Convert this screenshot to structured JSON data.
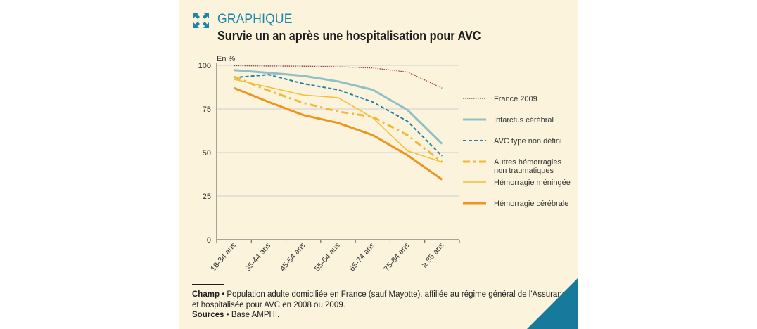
{
  "header": {
    "label": "GRAPHIQUE",
    "title": "Survie un an après une hospitalisation pour AVC",
    "icon": "expand-arrows-icon",
    "accent_color": "#1a86a8"
  },
  "chart_data": {
    "type": "line",
    "title": "Survie un an après une hospitalisation pour AVC",
    "ylabel": "En %",
    "xlabel": "",
    "ylim": [
      0,
      100
    ],
    "yticks": [
      0,
      25,
      50,
      75,
      100
    ],
    "grid": true,
    "legend_position": "right",
    "categories": [
      "18-34 ans",
      "35-44 ans",
      "45-54 ans",
      "55-64 ans",
      "65-74 ans",
      "75-84 ans",
      "≥ 85 ans"
    ],
    "series": [
      {
        "name": "France 2009",
        "values": [
          99.8,
          99.6,
          99.5,
          99.2,
          98.5,
          96.2,
          87.0
        ],
        "color": "#9b3a3a",
        "style": "dotted"
      },
      {
        "name": "Infarctus cérébral",
        "values": [
          97.3,
          95.7,
          94.0,
          90.8,
          86.0,
          74.5,
          55.0
        ],
        "color": "#8fc0c8",
        "style": "solid-thick"
      },
      {
        "name": "AVC type non défini",
        "values": [
          93.0,
          94.7,
          89.5,
          86.0,
          79.0,
          68.0,
          48.0
        ],
        "color": "#1f7fa4",
        "style": "dashed"
      },
      {
        "name": "Autres hémorragies non traumatiques",
        "values": [
          93.5,
          85.5,
          78.5,
          73.5,
          70.5,
          60.0,
          44.5
        ],
        "color": "#f3b936",
        "style": "dashdot"
      },
      {
        "name": "Hémorragie méningée",
        "values": [
          92.0,
          87.5,
          83.0,
          81.5,
          70.0,
          51.0,
          44.5
        ],
        "color": "#f4c03a",
        "style": "solid-thin"
      },
      {
        "name": "Hémorragie cérébrale",
        "values": [
          87.0,
          79.0,
          71.5,
          67.0,
          60.0,
          48.5,
          34.5
        ],
        "color": "#ee9420",
        "style": "solid-bold"
      }
    ]
  },
  "notes": {
    "champ_label": "Champ",
    "bullet": "•",
    "champ_text_1": "Population adulte domiciliée en France (sauf Mayotte), affiliée au régime général de l'Assurance maladie",
    "champ_text_2": "et hospitalisée pour AVC en 2008 ou 2009.",
    "sources_label": "Sources",
    "sources_text": "Base AMPHI."
  }
}
